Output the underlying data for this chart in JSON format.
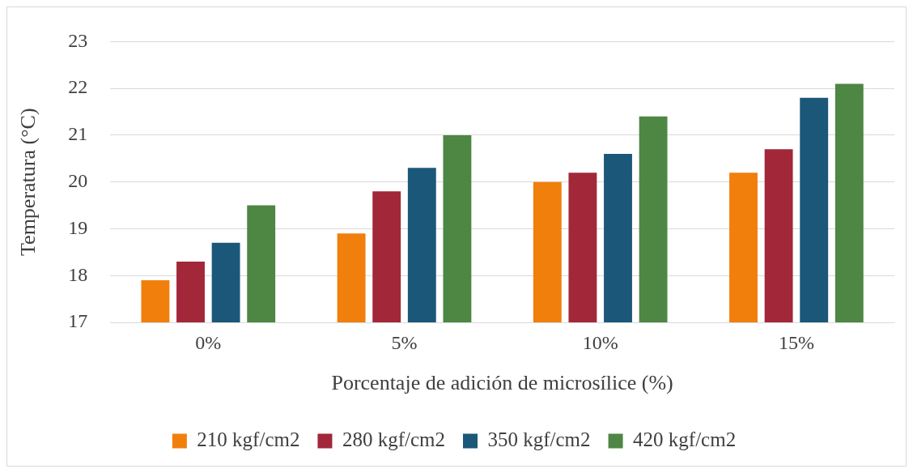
{
  "chart_data": {
    "type": "bar",
    "xlabel": "Porcentaje de adición de microsílice (%)",
    "ylabel": "Temperatura (°C)",
    "categories": [
      "0%",
      "5%",
      "10%",
      "15%"
    ],
    "series": [
      {
        "name": "210 kgf/cm2",
        "color": "#f07f0c",
        "values": [
          17.9,
          18.9,
          20.0,
          20.2
        ]
      },
      {
        "name": "280 kgf/cm2",
        "color": "#a12739",
        "values": [
          18.3,
          19.8,
          20.2,
          20.7
        ]
      },
      {
        "name": "350 kgf/cm2",
        "color": "#1b5779",
        "values": [
          18.7,
          20.3,
          20.6,
          21.8
        ]
      },
      {
        "name": "420 kgf/cm2",
        "color": "#4e8644",
        "values": [
          19.5,
          21.0,
          21.4,
          22.1
        ]
      }
    ],
    "ylim": [
      17,
      23
    ],
    "yticks": [
      17,
      18,
      19,
      20,
      21,
      22,
      23
    ],
    "grid": "y",
    "legend": "bottom"
  }
}
